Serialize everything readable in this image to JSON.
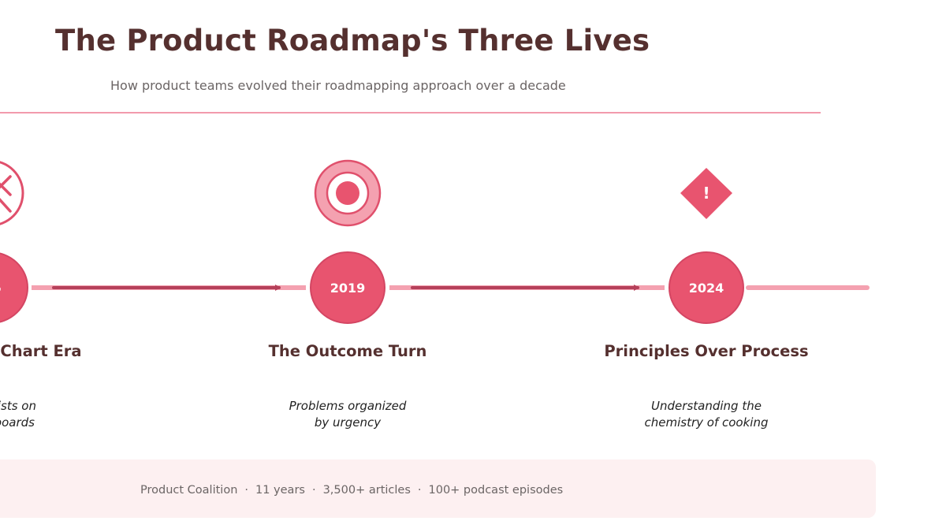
{
  "header": {
    "title": "The Product Roadmap's Three Lives",
    "subtitle": "How product teams evolved their roadmapping approach over a decade"
  },
  "colors": {
    "title": "#55302f",
    "accent": "#e8546f",
    "accent_light": "#f4a1b0",
    "arrow": "#b5405a",
    "footer_bg": "#fdf0f1"
  },
  "milestones": [
    {
      "year_partial": "6",
      "title_partial": "Chart Era",
      "desc_lines": [
        "ists on",
        "boards"
      ],
      "icon": "x-circle-icon"
    },
    {
      "year": "2019",
      "title": "The Outcome Turn",
      "desc_lines": [
        "Problems organized",
        "by urgency"
      ],
      "icon": "target-icon"
    },
    {
      "year": "2024",
      "title": "Principles Over Process",
      "desc_lines": [
        "Understanding the",
        "chemistry of cooking"
      ],
      "icon": "exclamation-diamond-icon",
      "icon_text": "!"
    }
  ],
  "footer": {
    "items": [
      "Product Coalition",
      "11 years",
      "3,500+ articles",
      "100+ podcast episodes"
    ],
    "separator": "·"
  }
}
